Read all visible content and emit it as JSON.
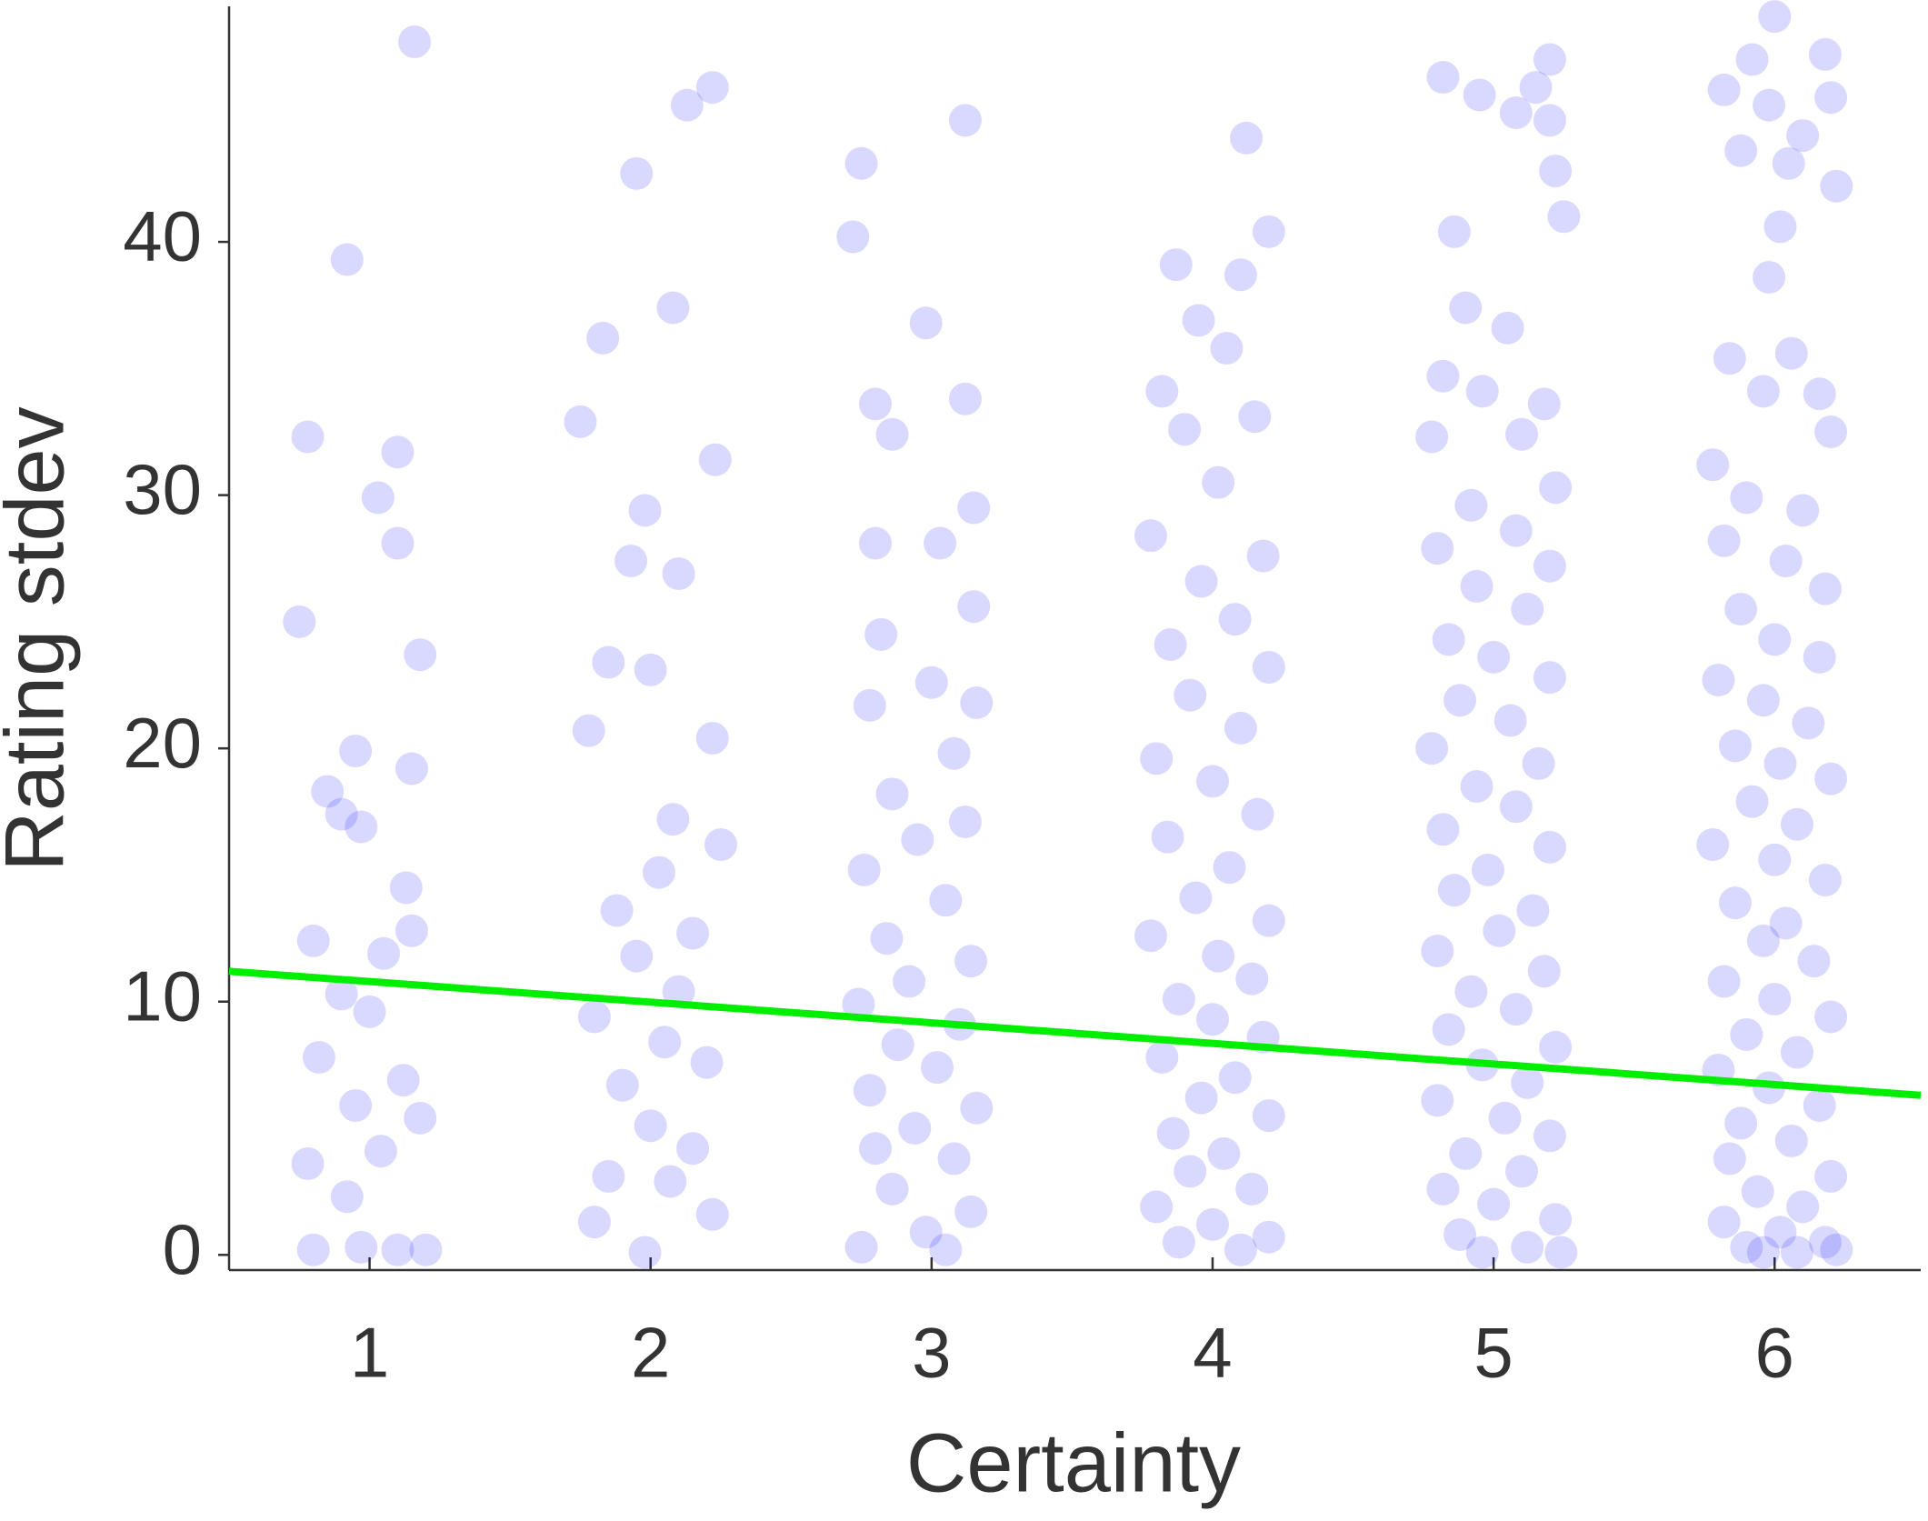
{
  "chart_data": {
    "type": "scatter",
    "x_label": "Certainty",
    "y_label": "Rating stdev",
    "xlim": [
      0.5,
      6.52
    ],
    "ylim": [
      -0.6,
      49.3
    ],
    "xticks": [
      1,
      2,
      3,
      4,
      5,
      6
    ],
    "yticks": [
      0,
      10,
      20,
      30,
      40
    ],
    "series": [
      {
        "color": "#0000ff",
        "opacity": 0.15,
        "x": [
          1.16,
          0.92,
          0.78,
          1.1,
          1.03,
          1.1,
          0.75,
          1.18,
          0.95,
          1.15,
          0.85,
          0.97,
          1.13,
          0.8,
          1.05,
          0.9,
          1.0,
          0.82,
          1.12,
          0.95,
          1.18,
          0.78,
          1.04,
          0.92,
          0.8,
          1.1,
          1.2,
          0.97,
          1.15,
          0.9,
          2.22,
          2.13,
          1.95,
          2.08,
          1.83,
          2.23,
          1.75,
          1.98,
          1.93,
          2.1,
          1.85,
          2.0,
          2.22,
          1.78,
          2.08,
          2.25,
          2.03,
          1.88,
          2.15,
          1.95,
          2.1,
          1.8,
          2.05,
          2.2,
          1.9,
          2.0,
          2.15,
          1.85,
          2.07,
          1.8,
          2.22,
          1.98,
          2.75,
          3.12,
          2.72,
          2.98,
          2.8,
          3.12,
          2.86,
          3.15,
          2.8,
          3.03,
          3.15,
          2.82,
          3.0,
          3.16,
          2.78,
          3.08,
          2.86,
          3.12,
          2.95,
          2.76,
          3.05,
          2.84,
          3.14,
          2.92,
          2.74,
          3.1,
          2.88,
          3.02,
          2.78,
          3.16,
          2.94,
          2.8,
          3.08,
          2.86,
          3.14,
          2.98,
          2.75,
          3.05,
          4.12,
          3.87,
          4.2,
          4.1,
          3.95,
          4.05,
          3.82,
          3.9,
          4.15,
          4.02,
          3.78,
          4.18,
          3.96,
          4.08,
          3.85,
          4.2,
          3.92,
          4.1,
          3.8,
          4.0,
          4.16,
          3.84,
          4.06,
          3.94,
          4.2,
          3.78,
          4.02,
          4.14,
          3.88,
          4.0,
          4.18,
          3.82,
          4.08,
          3.96,
          4.2,
          3.86,
          4.04,
          3.92,
          4.14,
          3.8,
          4.0,
          4.2,
          3.88,
          4.1,
          4.82,
          4.95,
          5.15,
          5.2,
          5.08,
          5.22,
          5.25,
          4.86,
          5.2,
          4.9,
          5.05,
          4.82,
          4.96,
          5.18,
          4.78,
          5.1,
          5.22,
          4.92,
          5.08,
          4.8,
          5.2,
          4.94,
          5.12,
          4.84,
          5.0,
          5.2,
          4.88,
          5.06,
          4.78,
          5.16,
          4.94,
          5.08,
          4.82,
          5.2,
          4.98,
          4.86,
          5.14,
          5.02,
          4.8,
          5.18,
          4.92,
          5.08,
          4.84,
          5.22,
          4.96,
          5.12,
          4.8,
          5.04,
          5.2,
          4.9,
          5.1,
          4.82,
          5.0,
          5.22,
          4.88,
          5.12,
          4.96,
          5.24,
          6.0,
          5.82,
          5.92,
          6.18,
          5.98,
          6.2,
          6.1,
          5.88,
          6.05,
          6.22,
          6.02,
          5.98,
          5.84,
          6.06,
          5.96,
          6.16,
          5.78,
          6.2,
          5.9,
          6.1,
          5.82,
          6.04,
          6.18,
          5.88,
          6.0,
          6.16,
          5.8,
          5.96,
          6.12,
          5.86,
          6.02,
          6.2,
          5.92,
          6.08,
          5.78,
          6.0,
          6.18,
          5.86,
          6.04,
          5.96,
          6.14,
          5.82,
          6.0,
          6.2,
          5.9,
          6.08,
          5.8,
          5.98,
          6.16,
          5.88,
          6.06,
          5.84,
          6.2,
          5.94,
          6.1,
          5.82,
          6.02,
          6.18,
          5.9,
          6.08,
          5.96,
          6.22
        ],
        "values": [
          47.9,
          39.3,
          32.3,
          31.7,
          29.9,
          28.1,
          25,
          23.7,
          19.9,
          19.2,
          18.3,
          16.9,
          14.5,
          12.4,
          11.9,
          10.3,
          9.6,
          7.8,
          6.9,
          5.9,
          5.4,
          3.6,
          4.1,
          2.3,
          0.2,
          0.2,
          0.2,
          0.3,
          12.8,
          17.4,
          46.1,
          45.4,
          42.7,
          37.4,
          36.2,
          31.4,
          32.9,
          29.4,
          27.4,
          26.9,
          23.4,
          23.1,
          20.4,
          20.7,
          17.2,
          16.2,
          15.1,
          13.6,
          12.7,
          11.8,
          10.4,
          9.4,
          8.4,
          7.6,
          6.7,
          5.1,
          4.2,
          3.1,
          2.9,
          1.3,
          1.6,
          0.1,
          43.1,
          44.8,
          40.2,
          36.8,
          33.6,
          33.8,
          32.4,
          29.5,
          28.1,
          28.1,
          25.6,
          24.5,
          22.6,
          21.8,
          21.7,
          19.8,
          18.2,
          17.1,
          16.4,
          15.2,
          14.0,
          12.5,
          11.6,
          10.8,
          9.9,
          9.1,
          8.3,
          7.4,
          6.5,
          5.8,
          5.0,
          4.2,
          3.8,
          2.6,
          1.7,
          0.9,
          0.3,
          0.2,
          44.1,
          39.1,
          40.4,
          38.7,
          36.9,
          35.8,
          34.1,
          32.6,
          33.1,
          30.5,
          28.4,
          27.6,
          26.6,
          25.1,
          24.1,
          23.2,
          22.1,
          20.8,
          19.6,
          18.7,
          17.4,
          16.5,
          15.3,
          14.1,
          13.2,
          12.6,
          11.8,
          10.9,
          10.1,
          9.3,
          8.6,
          7.8,
          7.0,
          6.2,
          5.5,
          4.8,
          4.0,
          3.3,
          2.6,
          1.9,
          1.2,
          0.7,
          0.5,
          0.2,
          46.5,
          45.8,
          46.1,
          44.8,
          45.1,
          42.8,
          41.0,
          40.4,
          47.2,
          37.4,
          36.6,
          34.7,
          34.1,
          33.6,
          32.3,
          32.4,
          30.3,
          29.6,
          28.6,
          27.9,
          27.2,
          26.4,
          25.5,
          24.3,
          23.6,
          22.8,
          21.9,
          21.1,
          20.0,
          19.4,
          18.5,
          17.7,
          16.8,
          16.1,
          15.2,
          14.4,
          13.6,
          12.8,
          12.0,
          11.2,
          10.4,
          9.7,
          8.9,
          8.2,
          7.5,
          6.8,
          6.1,
          5.4,
          4.7,
          4.0,
          3.3,
          2.6,
          2.0,
          1.4,
          0.8,
          0.3,
          0.1,
          0.1,
          48.9,
          46.0,
          47.2,
          47.4,
          45.4,
          45.7,
          44.2,
          43.6,
          43.1,
          42.2,
          40.6,
          38.6,
          35.4,
          35.6,
          34.1,
          34.0,
          31.2,
          32.5,
          29.9,
          29.4,
          28.2,
          27.4,
          26.3,
          25.5,
          24.3,
          23.6,
          22.7,
          21.9,
          21.0,
          20.1,
          19.4,
          18.8,
          17.9,
          17.0,
          16.2,
          15.6,
          14.8,
          13.9,
          13.1,
          12.4,
          11.6,
          10.8,
          10.1,
          9.4,
          8.7,
          8.0,
          7.3,
          6.6,
          5.9,
          5.2,
          4.5,
          3.8,
          3.1,
          2.5,
          1.9,
          1.3,
          0.9,
          0.5,
          0.3,
          0.1,
          0.1,
          0.2
        ]
      }
    ],
    "trendline": {
      "color": "#00ee00",
      "x": [
        0.5,
        6.52
      ],
      "values": [
        11.2,
        6.3
      ]
    }
  }
}
